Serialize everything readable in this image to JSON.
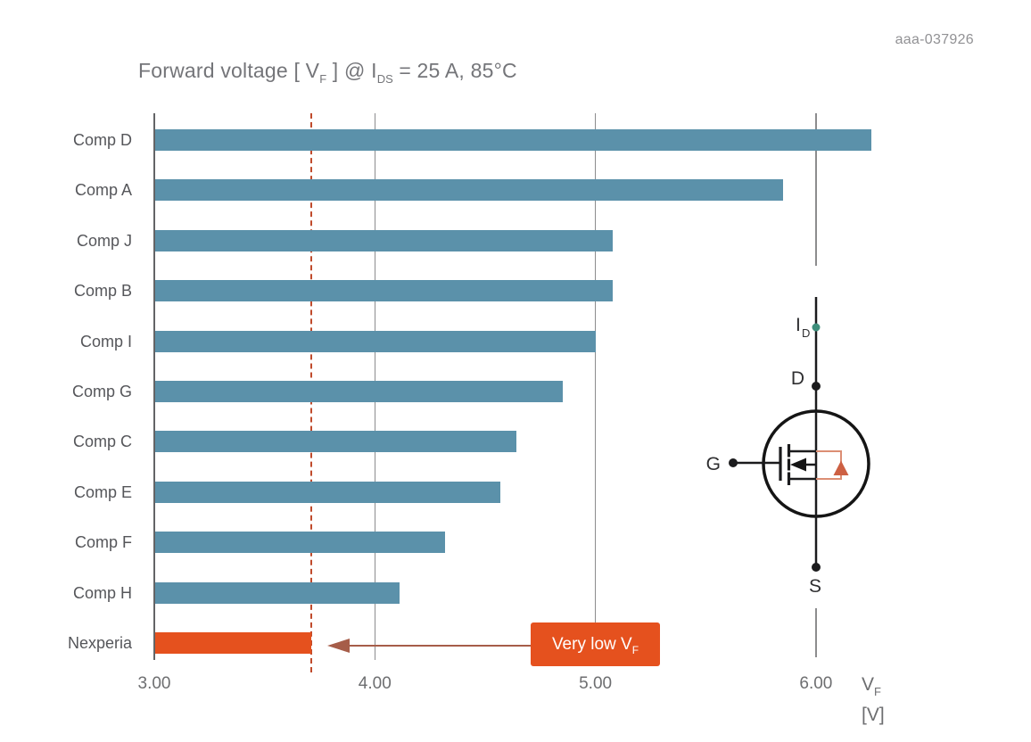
{
  "doc_code": "aaa-037926",
  "title": {
    "part1": "Forward voltage [ V",
    "sub1": "F",
    "part2": " ] @ I",
    "sub2": "DS",
    "part3": " = 25 A, 85°C"
  },
  "axis_label": {
    "symbol": "V",
    "symbol_sub": "F",
    "unit": "[V]"
  },
  "annotation": {
    "text": "Very low V",
    "sub": "F"
  },
  "circuit": {
    "labels": {
      "current": "I",
      "current_sub": "D",
      "drain": "D",
      "gate": "G",
      "source": "S"
    },
    "colors": {
      "wire": "#1b1b1d",
      "body_diode": "#dc8e74",
      "diode_fill": "#cd6043",
      "current_dot": "#3e8e7b"
    }
  },
  "chart_data": {
    "type": "bar",
    "orientation": "horizontal",
    "title": "Forward voltage [ V_F ] @ I_DS = 25 A, 85°C",
    "xlabel": "V_F [V]",
    "xlim": [
      3.0,
      6.35
    ],
    "grid": true,
    "legend": false,
    "categories": [
      "Comp D",
      "Comp A",
      "Comp J",
      "Comp B",
      "Comp I",
      "Comp G",
      "Comp C",
      "Comp E",
      "Comp F",
      "Comp H",
      "Nexperia"
    ],
    "values": [
      6.25,
      5.85,
      5.08,
      5.08,
      5.0,
      4.85,
      4.64,
      4.57,
      4.32,
      4.11,
      3.71
    ],
    "highlight_index": 10,
    "highlight_label": "Nexperia",
    "reference_line": {
      "value": 3.71,
      "style": "dashed"
    },
    "annotation": {
      "text": "Very low V_F",
      "points_to": "Nexperia"
    },
    "ticks": [
      {
        "label": "3.00",
        "value": 3.0,
        "gridline": "axis"
      },
      {
        "label": "4.00",
        "value": 4.0,
        "gridline": "full"
      },
      {
        "label": "5.00",
        "value": 5.0,
        "gridline": "full"
      },
      {
        "label": "6.00",
        "value": 6.0,
        "gridline": "split"
      }
    ],
    "colors": {
      "bar": "#5b91aa",
      "highlight": "#e5511e",
      "reference_line": "#c04b2c",
      "grid": "#8c8c8e",
      "axis": "#636466",
      "annotation_box": "#e5511e",
      "annotation_arrow": "#a65d49"
    }
  }
}
